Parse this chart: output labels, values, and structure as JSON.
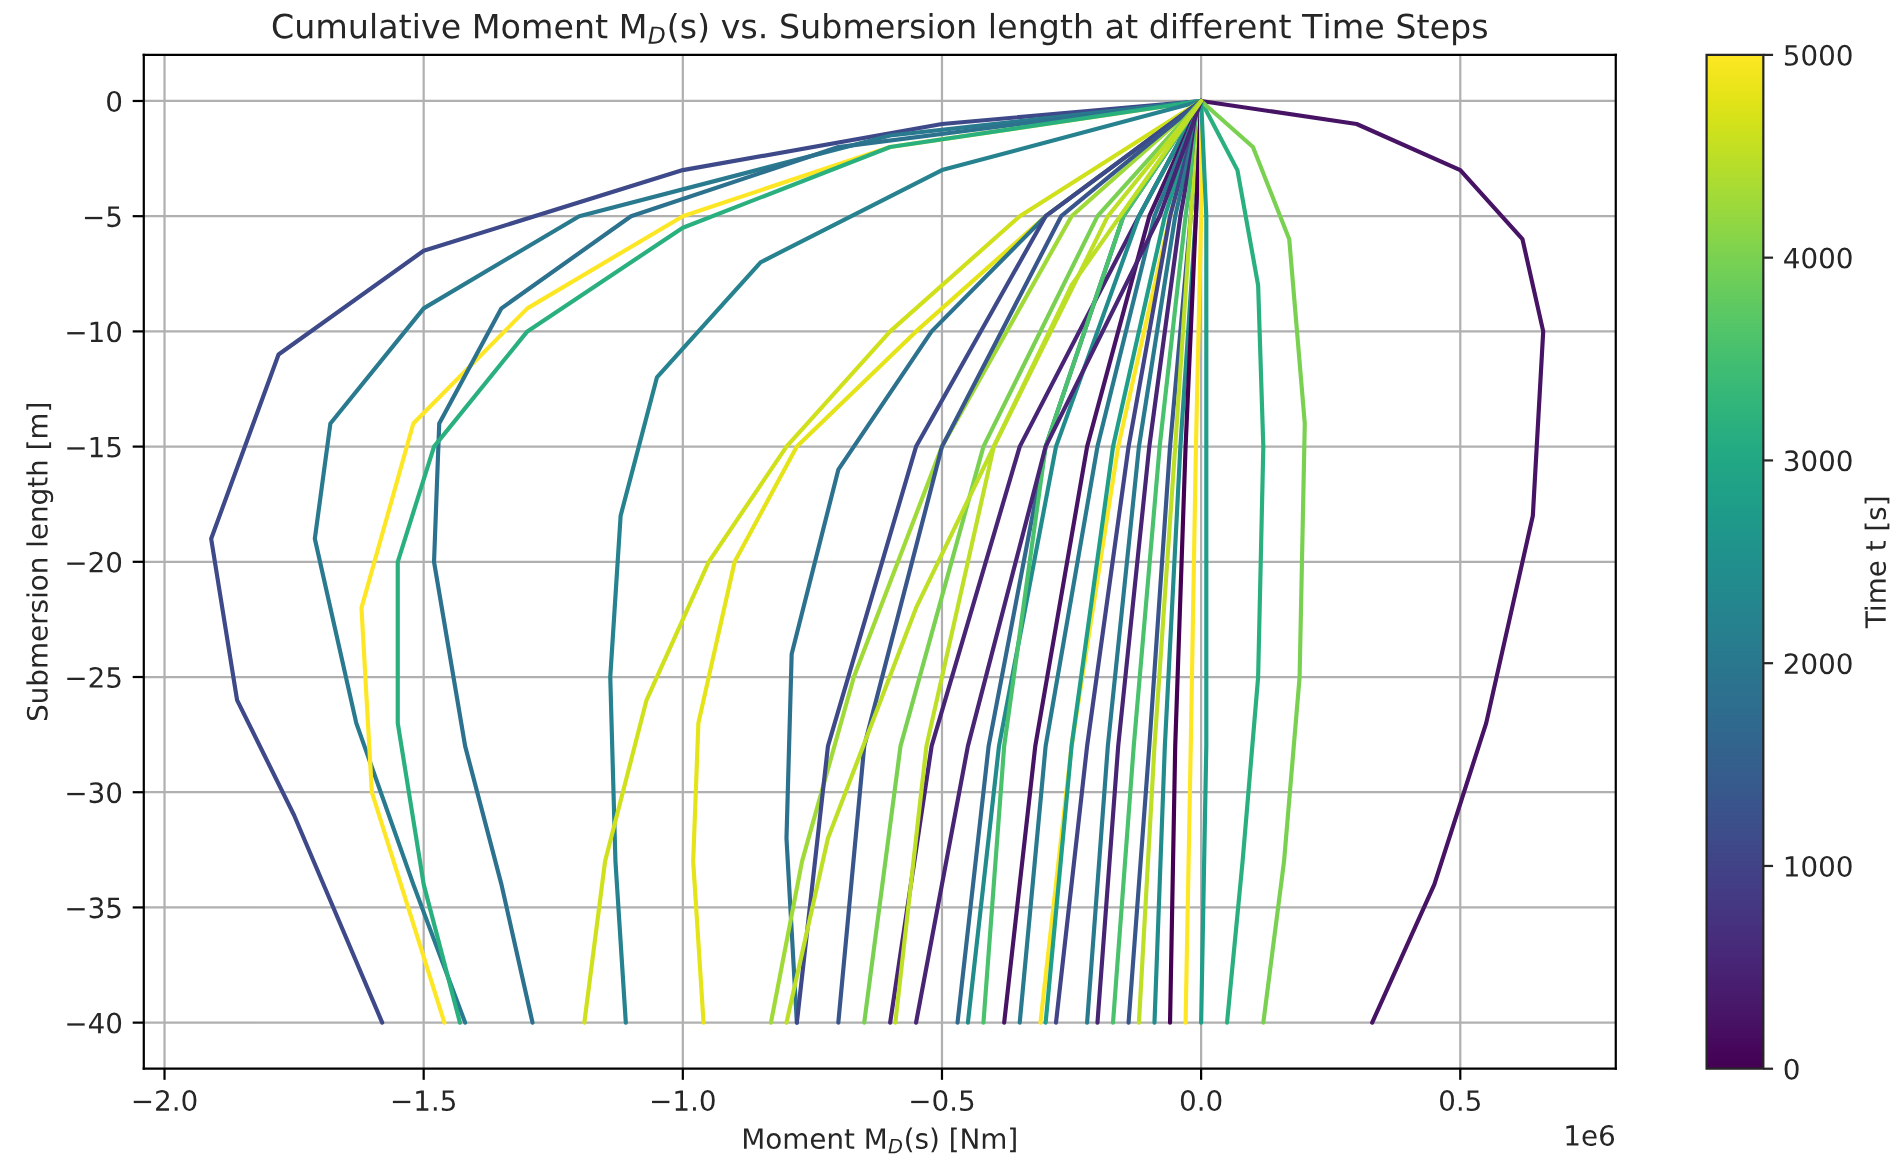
{
  "chart_data": {
    "type": "line",
    "title": "Cumulative Moment M$_{D}$(s) vs. Submersion length at different Time Steps",
    "xlabel": "Moment M$_{D}$(s) [Nm]",
    "ylabel": "Submersion length [m]",
    "clabel": "Time t [s]",
    "annotations": [
      "1e6"
    ],
    "xlim": [
      -2.04,
      0.8
    ],
    "ylim": [
      -42,
      2
    ],
    "xticks": [
      {
        "value": -2.0,
        "label": "−2.0"
      },
      {
        "value": -1.5,
        "label": "−1.5"
      },
      {
        "value": -1.0,
        "label": "−1.0"
      },
      {
        "value": -0.5,
        "label": "−0.5"
      },
      {
        "value": 0.0,
        "label": "0.0"
      },
      {
        "value": 0.5,
        "label": "0.5"
      }
    ],
    "yticks": [
      {
        "value": 0,
        "label": "0"
      },
      {
        "value": -5,
        "label": "−5"
      },
      {
        "value": -10,
        "label": "−10"
      },
      {
        "value": -15,
        "label": "−15"
      },
      {
        "value": -20,
        "label": "−20"
      },
      {
        "value": -25,
        "label": "−25"
      },
      {
        "value": -30,
        "label": "−30"
      },
      {
        "value": -35,
        "label": "−35"
      },
      {
        "value": -40,
        "label": "−40"
      }
    ],
    "clim": [
      0,
      5000
    ],
    "cticks": [
      0,
      1000,
      2000,
      3000,
      4000,
      5000
    ],
    "grid": true,
    "series": [
      {
        "color": "#3e4989",
        "x": [
          0,
          -0.5,
          -1.0,
          -1.5,
          -1.78,
          -1.91,
          -1.86,
          -1.75,
          -1.58
        ],
        "values": [
          0,
          -1,
          -3,
          -6.5,
          -11,
          -19,
          -26,
          -31,
          -40
        ]
      },
      {
        "color": "#297a8e",
        "x": [
          0,
          -0.6,
          -1.2,
          -1.5,
          -1.68,
          -1.71,
          -1.63,
          -1.52,
          -1.42
        ],
        "values": [
          0,
          -1.5,
          -5,
          -9,
          -14,
          -19,
          -27,
          -34,
          -40
        ]
      },
      {
        "color": "#fde725",
        "x": [
          0,
          -0.6,
          -1.0,
          -1.3,
          -1.52,
          -1.62,
          -1.6,
          -1.53,
          -1.46
        ],
        "values": [
          0,
          -2,
          -5,
          -9,
          -14,
          -22,
          -30,
          -35,
          -40
        ]
      },
      {
        "color": "#2c728e",
        "x": [
          0,
          -0.7,
          -1.1,
          -1.35,
          -1.47,
          -1.48,
          -1.42,
          -1.35,
          -1.29
        ],
        "values": [
          0,
          -2,
          -5,
          -9,
          -14,
          -20,
          -28,
          -34,
          -40
        ]
      },
      {
        "color": "#2ab07f",
        "x": [
          0,
          -0.6,
          -1.0,
          -1.3,
          -1.48,
          -1.55,
          -1.55,
          -1.5,
          -1.43
        ],
        "values": [
          0,
          -2,
          -5.5,
          -10,
          -15,
          -20,
          -27,
          -34,
          -40
        ]
      },
      {
        "color": "#26828e",
        "x": [
          0,
          -0.5,
          -0.85,
          -1.05,
          -1.12,
          -1.14,
          -1.13,
          -1.11
        ],
        "values": [
          0,
          -3,
          -7,
          -12,
          -18,
          -25,
          -33,
          -40
        ]
      },
      {
        "color": "#d0e11c",
        "x": [
          0,
          -0.35,
          -0.6,
          -0.8,
          -0.95,
          -1.07,
          -1.15,
          -1.19
        ],
        "values": [
          0,
          -5,
          -10,
          -15,
          -20,
          -26,
          -33,
          -40
        ]
      },
      {
        "color": "#e5e419",
        "x": [
          0,
          -0.3,
          -0.55,
          -0.78,
          -0.9,
          -0.97,
          -0.98,
          -0.96
        ],
        "values": [
          0,
          -5,
          -10,
          -15,
          -20,
          -27,
          -33,
          -40
        ]
      },
      {
        "color": "#2c728e",
        "x": [
          0,
          -0.3,
          -0.52,
          -0.7,
          -0.79,
          -0.8,
          -0.78
        ],
        "values": [
          0,
          -5,
          -10,
          -16,
          -24,
          -32,
          -40
        ]
      },
      {
        "color": "#a0da39",
        "x": [
          0,
          -0.25,
          -0.5,
          -0.67,
          -0.77,
          -0.83
        ],
        "values": [
          0,
          -5,
          -15,
          -25,
          -33,
          -40
        ]
      },
      {
        "color": "#471365",
        "x": [
          0,
          0.3,
          0.5,
          0.62,
          0.66,
          0.64,
          0.55,
          0.45,
          0.33
        ],
        "values": [
          0,
          -1,
          -3,
          -6,
          -10,
          -18,
          -27,
          -34,
          -40
        ]
      },
      {
        "color": "#2ab07f",
        "x": [
          0,
          0.07,
          0.11,
          0.12,
          0.11,
          0.08,
          0.05
        ],
        "values": [
          0,
          -3,
          -8,
          -15,
          -25,
          -33,
          -40
        ]
      },
      {
        "color": "#7ad151",
        "x": [
          0,
          0.1,
          0.17,
          0.2,
          0.19,
          0.16,
          0.12
        ],
        "values": [
          0,
          -2,
          -6,
          -14,
          -25,
          -33,
          -40
        ]
      },
      {
        "color": "#3e4989",
        "x": [
          0,
          -0.3,
          -0.55,
          -0.72,
          -0.78
        ],
        "values": [
          0,
          -5,
          -15,
          -28,
          -40
        ]
      },
      {
        "color": "#39568c",
        "x": [
          0,
          -0.27,
          -0.5,
          -0.65,
          -0.7
        ],
        "values": [
          0,
          -5,
          -15,
          -28,
          -40
        ]
      },
      {
        "color": "#7ad151",
        "x": [
          0,
          -0.2,
          -0.42,
          -0.58,
          -0.65
        ],
        "values": [
          0,
          -5,
          -15,
          -28,
          -40
        ]
      },
      {
        "color": "#482475",
        "x": [
          0,
          -0.12,
          -0.35,
          -0.52,
          -0.6
        ],
        "values": [
          0,
          -5,
          -15,
          -28,
          -40
        ]
      },
      {
        "color": "#bddf26",
        "x": [
          0,
          -0.18,
          -0.4,
          -0.53,
          -0.59
        ],
        "values": [
          0,
          -5,
          -15,
          -28,
          -40
        ]
      },
      {
        "color": "#31688e",
        "x": [
          0,
          -0.15,
          -0.3,
          -0.41,
          -0.47
        ],
        "values": [
          0,
          -5,
          -15,
          -28,
          -40
        ]
      },
      {
        "color": "#228c8d",
        "x": [
          0,
          -0.12,
          -0.28,
          -0.39,
          -0.45
        ],
        "values": [
          0,
          -5,
          -15,
          -28,
          -40
        ]
      },
      {
        "color": "#4ac16d",
        "x": [
          0,
          -0.15,
          -0.3,
          -0.38,
          -0.42
        ],
        "values": [
          0,
          -5,
          -15,
          -28,
          -40
        ]
      },
      {
        "color": "#471365",
        "x": [
          0,
          -0.1,
          -0.22,
          -0.32,
          -0.38
        ],
        "values": [
          0,
          -5,
          -15,
          -28,
          -40
        ]
      },
      {
        "color": "#297a8e",
        "x": [
          0,
          -0.09,
          -0.2,
          -0.3,
          -0.35
        ],
        "values": [
          0,
          -5,
          -15,
          -28,
          -40
        ]
      },
      {
        "color": "#fde725",
        "x": [
          0,
          -0.06,
          -0.16,
          -0.25,
          -0.31
        ],
        "values": [
          0,
          -5,
          -15,
          -28,
          -40
        ]
      },
      {
        "color": "#1f9e89",
        "x": [
          0,
          -0.07,
          -0.17,
          -0.25,
          -0.3
        ],
        "values": [
          0,
          -5,
          -15,
          -28,
          -40
        ]
      },
      {
        "color": "#414487",
        "x": [
          0,
          -0.06,
          -0.14,
          -0.22,
          -0.28
        ],
        "values": [
          0,
          -5,
          -15,
          -28,
          -40
        ]
      },
      {
        "color": "#297a8e",
        "x": [
          0,
          -0.05,
          -0.12,
          -0.18,
          -0.22
        ],
        "values": [
          0,
          -5,
          -15,
          -28,
          -40
        ]
      },
      {
        "color": "#482475",
        "x": [
          0,
          -0.04,
          -0.1,
          -0.16,
          -0.2
        ],
        "values": [
          0,
          -5,
          -15,
          -28,
          -40
        ]
      },
      {
        "color": "#4ac16d",
        "x": [
          0,
          -0.03,
          -0.08,
          -0.13,
          -0.17
        ],
        "values": [
          0,
          -5,
          -15,
          -28,
          -40
        ]
      },
      {
        "color": "#39568c",
        "x": [
          0,
          -0.02,
          -0.06,
          -0.1,
          -0.14
        ],
        "values": [
          0,
          -5,
          -15,
          -28,
          -40
        ]
      },
      {
        "color": "#bddf26",
        "x": [
          0,
          -0.02,
          -0.05,
          -0.09,
          -0.12
        ],
        "values": [
          0,
          -5,
          -15,
          -28,
          -40
        ]
      },
      {
        "color": "#228c8d",
        "x": [
          0,
          -0.01,
          -0.04,
          -0.07,
          -0.09
        ],
        "values": [
          0,
          -5,
          -15,
          -28,
          -40
        ]
      },
      {
        "color": "#440154",
        "x": [
          0,
          -0.01,
          -0.03,
          -0.05,
          -0.06
        ],
        "values": [
          0,
          -5,
          -15,
          -28,
          -40
        ]
      },
      {
        "color": "#fde725",
        "x": [
          0,
          0.0,
          -0.01,
          -0.02,
          -0.03
        ],
        "values": [
          0,
          -5,
          -15,
          -28,
          -40
        ]
      },
      {
        "color": "#1f9e89",
        "x": [
          0,
          0.01,
          0.01,
          0.01,
          0.0
        ],
        "values": [
          0,
          -5,
          -15,
          -28,
          -40
        ]
      },
      {
        "color": "#482475",
        "x": [
          0,
          -0.08,
          -0.3,
          -0.45,
          -0.55
        ],
        "values": [
          0,
          -5,
          -15,
          -28,
          -40
        ]
      },
      {
        "color": "#bddf26",
        "x": [
          0,
          -0.25,
          -0.55,
          -0.72,
          -0.8
        ],
        "values": [
          0,
          -8,
          -22,
          -32,
          -40
        ]
      }
    ]
  }
}
